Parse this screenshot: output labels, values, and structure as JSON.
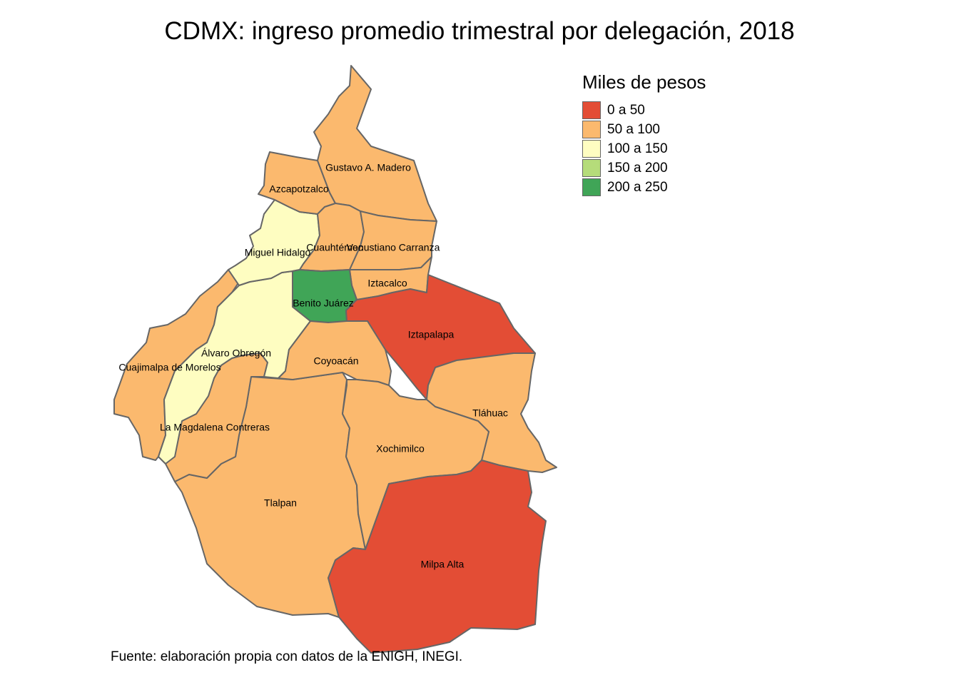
{
  "title": "CDMX: ingreso promedio trimestral por delegación, 2018",
  "legend": {
    "title": "Miles de pesos",
    "items": [
      {
        "label": "0 a 50",
        "color": "#e34d35"
      },
      {
        "label": "50 a 100",
        "color": "#fbb96e"
      },
      {
        "label": "100 a 150",
        "color": "#fefdc1"
      },
      {
        "label": "150 a 200",
        "color": "#b5dc7a"
      },
      {
        "label": "200 a 250",
        "color": "#40a557"
      }
    ]
  },
  "regions": [
    {
      "name": "Gustavo A. Madero",
      "class": "50 a 100",
      "color": "#fbb96e"
    },
    {
      "name": "Azcapotzalco",
      "class": "50 a 100",
      "color": "#fbb96e"
    },
    {
      "name": "Miguel Hidalgo",
      "class": "100 a 150",
      "color": "#fefdc1"
    },
    {
      "name": "Cuauhtémoc",
      "class": "50 a 100",
      "color": "#fbb96e"
    },
    {
      "name": "Venustiano Carranza",
      "class": "50 a 100",
      "color": "#fbb96e"
    },
    {
      "name": "Iztacalco",
      "class": "50 a 100",
      "color": "#fbb96e"
    },
    {
      "name": "Benito Juárez",
      "class": "200 a 250",
      "color": "#40a557"
    },
    {
      "name": "Iztapalapa",
      "class": "0 a 50",
      "color": "#e34d35"
    },
    {
      "name": "Álvaro Obregón",
      "class": "100 a 150",
      "color": "#fefdc1"
    },
    {
      "name": "Cuajimalpa de Morelos",
      "class": "50 a 100",
      "color": "#fbb96e"
    },
    {
      "name": "Coyoacán",
      "class": "50 a 100",
      "color": "#fbb96e"
    },
    {
      "name": "Tláhuac",
      "class": "50 a 100",
      "color": "#fbb96e"
    },
    {
      "name": "La Magdalena Contreras",
      "class": "50 a 100",
      "color": "#fbb96e"
    },
    {
      "name": "Xochimilco",
      "class": "50 a 100",
      "color": "#fbb96e"
    },
    {
      "name": "Tlalpan",
      "class": "50 a 100",
      "color": "#fbb96e"
    },
    {
      "name": "Milpa Alta",
      "class": "0 a 50",
      "color": "#e34d35"
    }
  ],
  "caption": "Fuente: elaboración propia con datos de la ENIGH, INEGI."
}
